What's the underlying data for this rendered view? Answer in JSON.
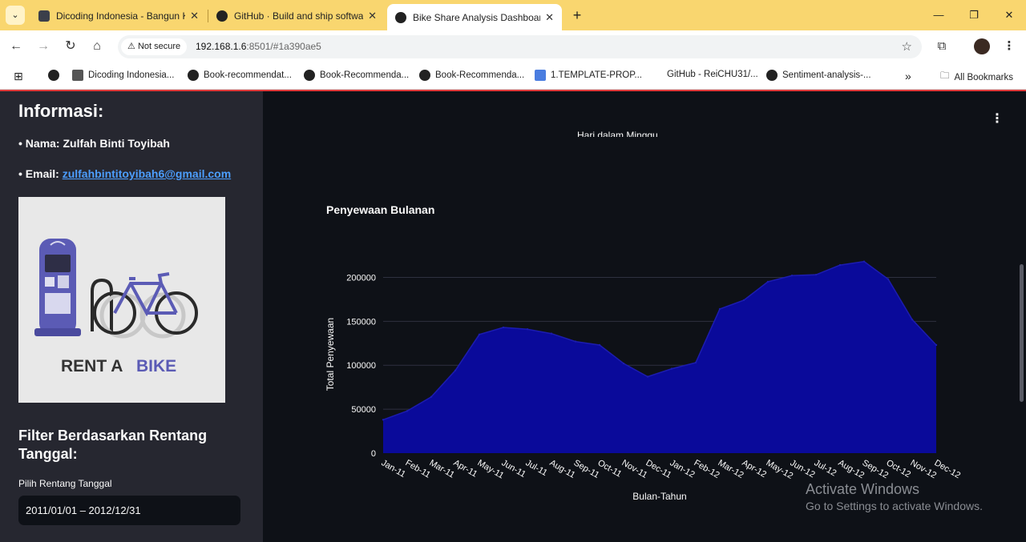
{
  "browser": {
    "tabs": [
      {
        "title": "Dicoding Indonesia - Bangun K",
        "active": false
      },
      {
        "title": "GitHub · Build and ship softwa",
        "active": false
      },
      {
        "title": "Bike Share Analysis Dashboard",
        "active": true
      }
    ],
    "address": {
      "security_label": "Not secure",
      "host": "192.168.1.6",
      "rest": ":8501/#1a390ae5"
    },
    "bookmarks": [
      "Dicoding Indonesia...",
      "Book-recommendat...",
      "Book-Recommenda...",
      "Book-Recommenda...",
      "1.TEMPLATE-PROP...",
      "GitHub - ReiCHU31/...",
      "Sentiment-analysis-..."
    ],
    "all_bookmarks": "All Bookmarks"
  },
  "sidebar": {
    "heading": "Informasi:",
    "name_label": "• Nama: Zulfah Binti Toyibah",
    "email_prefix": "• Email: ",
    "email": "zulfahbintitoyibah6@gmail.com",
    "image_text_rent": "RENT A",
    "image_text_bike": "BIKE",
    "filter_heading_1": "Filter Berdasarkan Rentang",
    "filter_heading_2": "Tanggal:",
    "date_label": "Pilih Rentang Tanggal",
    "date_value": "2011/01/01 – 2012/12/31"
  },
  "main": {
    "cut_label": "Hari dalam Minggu",
    "chart_heading": "Penyewaan Bulanan"
  },
  "watermark": {
    "line1": "Activate Windows",
    "line2": "Go to Settings to activate Windows."
  },
  "colors": {
    "area_fill": "#0a0a9a",
    "area_line": "#1c1cb0",
    "grid": "#2e3140",
    "text": "#fafafa",
    "link": "#4c9eff"
  },
  "chart_data": {
    "type": "area",
    "title": "Penyewaan Bulanan",
    "xlabel": "Bulan-Tahun",
    "ylabel": "Total Penyewaan",
    "ylim": [
      0,
      225000
    ],
    "yticks": [
      0,
      50000,
      100000,
      150000,
      200000
    ],
    "grid": true,
    "categories": [
      "Jan-11",
      "Feb-11",
      "Mar-11",
      "Apr-11",
      "May-11",
      "Jun-11",
      "Jul-11",
      "Aug-11",
      "Sep-11",
      "Oct-11",
      "Nov-11",
      "Dec-11",
      "Jan-12",
      "Feb-12",
      "Mar-12",
      "Apr-12",
      "May-12",
      "Jun-12",
      "Jul-12",
      "Aug-12",
      "Sep-12",
      "Oct-12",
      "Nov-12",
      "Dec-12"
    ],
    "values": [
      38000,
      48000,
      64000,
      94000,
      135000,
      143000,
      141000,
      136000,
      127000,
      123000,
      102000,
      87000,
      96000,
      103000,
      164000,
      174000,
      195000,
      202000,
      203000,
      214000,
      218000,
      198000,
      152000,
      123000
    ]
  }
}
